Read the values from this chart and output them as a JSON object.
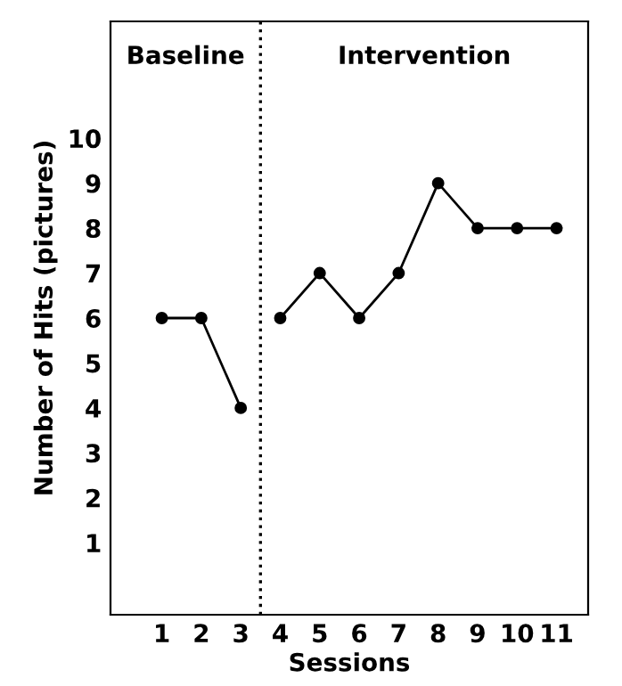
{
  "chart_data": {
    "type": "line",
    "xlabel": "Sessions",
    "ylabel": "Number of Hits (pictures)",
    "series": [
      {
        "color": "#000000",
        "x": [
          1,
          2,
          3
        ],
        "values": [
          6,
          6,
          4
        ]
      },
      {
        "color": "#000000",
        "x": [
          4,
          5,
          6,
          7,
          8,
          9,
          10,
          11
        ],
        "values": [
          6,
          7,
          6,
          7,
          9,
          8,
          8,
          8
        ]
      }
    ],
    "xlim": [
      -0.3,
      11.8
    ],
    "ylim": [
      -0.6,
      12.6
    ],
    "xticks": [
      1,
      2,
      3,
      4,
      5,
      6,
      7,
      8,
      9,
      10,
      11
    ],
    "yticks": [
      1,
      2,
      3,
      4,
      5,
      6,
      7,
      8,
      9,
      10
    ],
    "ref_lines": [
      {
        "axis": "x",
        "value": 3.5,
        "line_style": "dotted",
        "color": "#000000"
      }
    ],
    "annotations": [
      "Baseline",
      "Intervention"
    ],
    "marker": "circle",
    "line_style": "solid",
    "grid": false,
    "legend": false
  }
}
